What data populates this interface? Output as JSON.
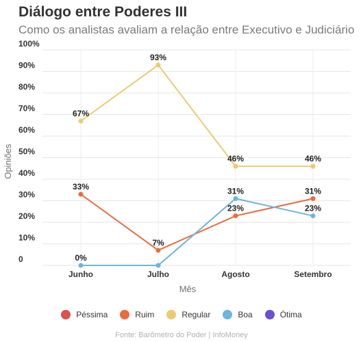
{
  "header": {
    "title": "Diálogo entre Poderes III",
    "subtitle": "Como os analistas avaliam a relação entre Executivo e Judiciário"
  },
  "chart_data": {
    "type": "line",
    "categories": [
      "Junho",
      "Julho",
      "Agosto",
      "Setembro"
    ],
    "series": [
      {
        "name": "Péssima",
        "color": "#d9534f",
        "values": [
          null,
          null,
          null,
          null
        ],
        "labels": [
          "",
          "",
          "",
          ""
        ]
      },
      {
        "name": "Ruim",
        "color": "#ec6a3c",
        "values": [
          33,
          7,
          23,
          31
        ],
        "labels": [
          "33%",
          "7%",
          "23%",
          "31%"
        ]
      },
      {
        "name": "Regular",
        "color": "#eccb6e",
        "values": [
          67,
          93,
          46,
          46
        ],
        "labels": [
          "67%",
          "93%",
          "46%",
          "46%"
        ]
      },
      {
        "name": "Boa",
        "color": "#6cb5de",
        "values": [
          0,
          0,
          31,
          23
        ],
        "labels": [
          "0%",
          "",
          "31%",
          "23%"
        ]
      },
      {
        "name": "Ótima",
        "color": "#6c4fd6",
        "values": [
          null,
          null,
          null,
          null
        ],
        "labels": [
          "",
          "",
          "",
          ""
        ]
      }
    ],
    "xlabel": "Mês",
    "ylabel": "Opiniões",
    "ylim": [
      0,
      100
    ],
    "yticks": [
      "0",
      "10%",
      "20%",
      "30%",
      "40%",
      "50%",
      "60%",
      "70%",
      "80%",
      "90%",
      "100%"
    ],
    "legend_position": "bottom",
    "grid": true
  },
  "footer": {
    "source": "Fonte: Barômetro do Poder | InfoMoney"
  }
}
